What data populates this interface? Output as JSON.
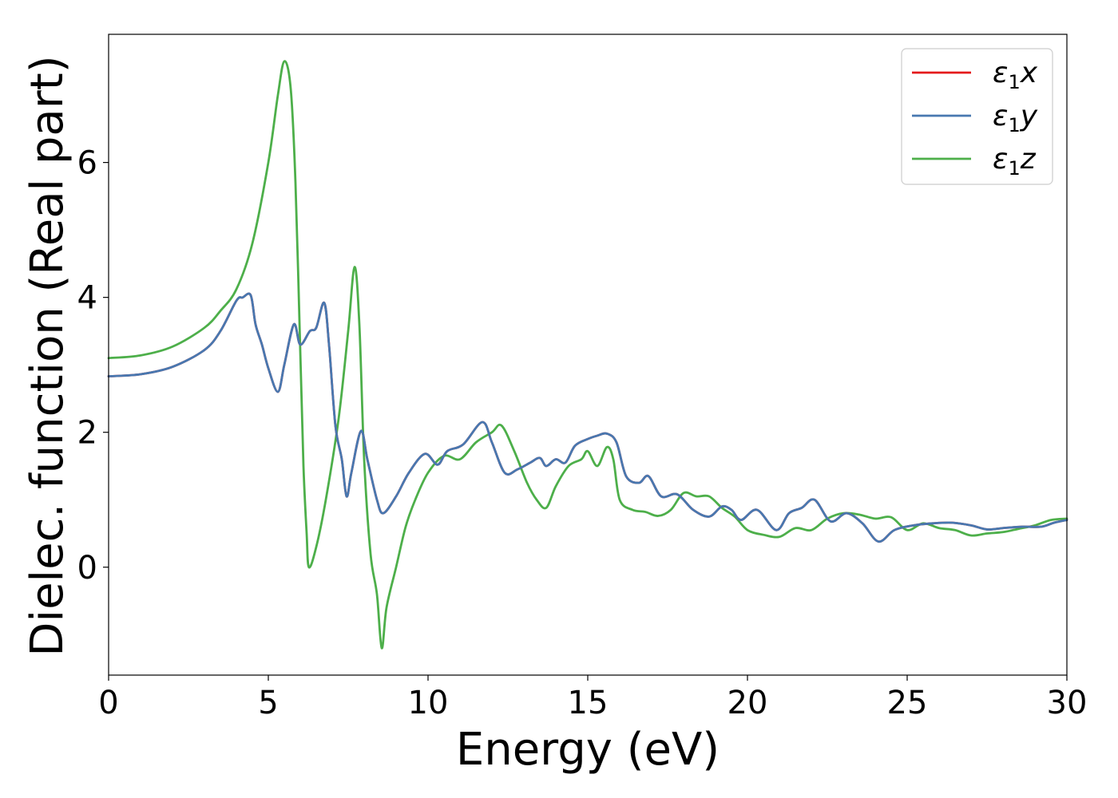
{
  "chart_data": {
    "type": "line",
    "xlabel": "Energy (eV)",
    "ylabel": "Dielec. function (Real part)",
    "xlim": [
      0,
      30
    ],
    "ylim": [
      -1.6,
      7.9
    ],
    "xticks": [
      "0",
      "5",
      "10",
      "15",
      "20",
      "25",
      "30"
    ],
    "yticks": [
      "0",
      "2",
      "4",
      "6"
    ],
    "grid": false,
    "legend_position": "top-right",
    "series": [
      {
        "name": "ε₁x",
        "legend_main": "ε",
        "legend_sub": "1",
        "legend_var": "x",
        "color": "#e41a1c",
        "x": [
          0,
          1,
          2,
          3,
          3.5,
          4.0,
          4.2,
          4.45,
          4.6,
          4.8,
          5.0,
          5.3,
          5.5,
          5.8,
          6.0,
          6.3,
          6.5,
          6.75,
          6.9,
          7.1,
          7.3,
          7.45,
          7.6,
          7.9,
          8.1,
          8.4,
          8.6,
          9.0,
          9.4,
          9.9,
          10.3,
          10.6,
          11.1,
          11.7,
          12.0,
          12.4,
          12.8,
          13.2,
          13.5,
          13.7,
          14.0,
          14.3,
          14.6,
          15.0,
          15.3,
          15.6,
          15.9,
          16.2,
          16.6,
          16.9,
          17.3,
          17.8,
          18.3,
          18.8,
          19.2,
          19.5,
          19.8,
          20.3,
          20.9,
          21.3,
          21.7,
          22.1,
          22.6,
          23.1,
          23.6,
          24.1,
          24.6,
          25.2,
          25.8,
          26.4,
          27.0,
          27.5,
          28.0,
          28.6,
          29.2,
          29.6,
          30.0
        ],
        "values": [
          2.83,
          2.86,
          2.97,
          3.22,
          3.5,
          3.95,
          4.0,
          4.03,
          3.6,
          3.3,
          2.95,
          2.6,
          3.0,
          3.6,
          3.3,
          3.5,
          3.55,
          3.92,
          3.3,
          2.1,
          1.6,
          1.05,
          1.4,
          2.02,
          1.6,
          1.0,
          0.8,
          1.05,
          1.4,
          1.68,
          1.52,
          1.72,
          1.82,
          2.15,
          1.85,
          1.4,
          1.45,
          1.55,
          1.62,
          1.5,
          1.6,
          1.55,
          1.8,
          1.9,
          1.95,
          1.98,
          1.85,
          1.35,
          1.25,
          1.35,
          1.05,
          1.08,
          0.85,
          0.75,
          0.9,
          0.85,
          0.7,
          0.85,
          0.55,
          0.8,
          0.88,
          1.0,
          0.68,
          0.8,
          0.65,
          0.38,
          0.55,
          0.62,
          0.65,
          0.66,
          0.62,
          0.56,
          0.58,
          0.6,
          0.6,
          0.66,
          0.7
        ]
      },
      {
        "name": "ε₁y",
        "legend_main": "ε",
        "legend_sub": "1",
        "legend_var": "y",
        "color": "#4878b0",
        "x": [
          0,
          1,
          2,
          3,
          3.5,
          4.0,
          4.2,
          4.45,
          4.6,
          4.8,
          5.0,
          5.3,
          5.5,
          5.8,
          6.0,
          6.3,
          6.5,
          6.75,
          6.9,
          7.1,
          7.3,
          7.45,
          7.6,
          7.9,
          8.1,
          8.4,
          8.6,
          9.0,
          9.4,
          9.9,
          10.3,
          10.6,
          11.1,
          11.7,
          12.0,
          12.4,
          12.8,
          13.2,
          13.5,
          13.7,
          14.0,
          14.3,
          14.6,
          15.0,
          15.3,
          15.6,
          15.9,
          16.2,
          16.6,
          16.9,
          17.3,
          17.8,
          18.3,
          18.8,
          19.2,
          19.5,
          19.8,
          20.3,
          20.9,
          21.3,
          21.7,
          22.1,
          22.6,
          23.1,
          23.6,
          24.1,
          24.6,
          25.2,
          25.8,
          26.4,
          27.0,
          27.5,
          28.0,
          28.6,
          29.2,
          29.6,
          30.0
        ],
        "values": [
          2.83,
          2.86,
          2.97,
          3.22,
          3.5,
          3.95,
          4.0,
          4.03,
          3.6,
          3.3,
          2.95,
          2.6,
          3.0,
          3.6,
          3.3,
          3.5,
          3.55,
          3.92,
          3.3,
          2.1,
          1.6,
          1.05,
          1.4,
          2.02,
          1.6,
          1.0,
          0.8,
          1.05,
          1.4,
          1.68,
          1.52,
          1.72,
          1.82,
          2.15,
          1.85,
          1.4,
          1.45,
          1.55,
          1.62,
          1.5,
          1.6,
          1.55,
          1.8,
          1.9,
          1.95,
          1.98,
          1.85,
          1.35,
          1.25,
          1.35,
          1.05,
          1.08,
          0.85,
          0.75,
          0.9,
          0.85,
          0.7,
          0.85,
          0.55,
          0.8,
          0.88,
          1.0,
          0.68,
          0.8,
          0.65,
          0.38,
          0.55,
          0.62,
          0.65,
          0.66,
          0.62,
          0.56,
          0.58,
          0.6,
          0.6,
          0.66,
          0.7
        ]
      },
      {
        "name": "ε₁z",
        "legend_main": "ε",
        "legend_sub": "1",
        "legend_var": "z",
        "color": "#4daf4a",
        "x": [
          0,
          1,
          2,
          3,
          3.5,
          4.0,
          4.5,
          5.0,
          5.3,
          5.5,
          5.7,
          5.85,
          6.0,
          6.1,
          6.2,
          6.27,
          6.5,
          6.8,
          7.2,
          7.5,
          7.7,
          7.85,
          8.0,
          8.2,
          8.4,
          8.55,
          8.7,
          9.0,
          9.3,
          9.6,
          10.0,
          10.5,
          11.0,
          11.5,
          12.0,
          12.3,
          12.7,
          13.1,
          13.4,
          13.7,
          14.0,
          14.4,
          14.8,
          15.0,
          15.3,
          15.6,
          15.8,
          16.0,
          16.4,
          16.8,
          17.2,
          17.6,
          18.0,
          18.4,
          18.8,
          19.2,
          19.6,
          20.0,
          20.5,
          21.0,
          21.5,
          22.0,
          22.5,
          23.0,
          23.5,
          24.0,
          24.5,
          25.0,
          25.5,
          26.0,
          26.5,
          27.0,
          27.5,
          28.0,
          28.5,
          29.0,
          29.5,
          30.0
        ],
        "values": [
          3.1,
          3.14,
          3.27,
          3.55,
          3.8,
          4.12,
          4.8,
          6.0,
          7.0,
          7.5,
          7.1,
          5.7,
          3.2,
          1.5,
          0.5,
          0.0,
          0.3,
          1.0,
          2.2,
          3.5,
          4.45,
          3.6,
          1.6,
          0.2,
          -0.4,
          -1.2,
          -0.6,
          0.0,
          0.6,
          1.0,
          1.4,
          1.65,
          1.6,
          1.85,
          2.0,
          2.1,
          1.72,
          1.25,
          1.0,
          0.88,
          1.2,
          1.5,
          1.6,
          1.72,
          1.5,
          1.78,
          1.6,
          1.0,
          0.85,
          0.82,
          0.76,
          0.85,
          1.1,
          1.05,
          1.05,
          0.88,
          0.75,
          0.55,
          0.48,
          0.45,
          0.58,
          0.55,
          0.72,
          0.8,
          0.78,
          0.72,
          0.74,
          0.55,
          0.65,
          0.58,
          0.55,
          0.47,
          0.5,
          0.52,
          0.57,
          0.62,
          0.7,
          0.72
        ]
      }
    ]
  }
}
